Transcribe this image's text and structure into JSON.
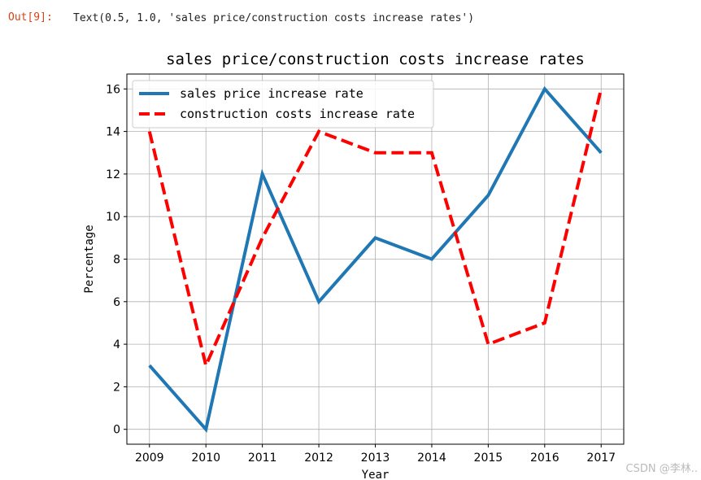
{
  "cell": {
    "prompt": "Out[9]:",
    "output_text": "Text(0.5, 1.0, 'sales price/construction costs increase rates')"
  },
  "watermark": "CSDN @李林..",
  "chart_data": {
    "type": "line",
    "title": "sales price/construction costs increase rates",
    "xlabel": "Year",
    "ylabel": "Percentage",
    "x": [
      2009,
      2010,
      2011,
      2012,
      2013,
      2014,
      2015,
      2016,
      2017
    ],
    "ylim": [
      -0.7,
      16.7
    ],
    "xlim": [
      2008.6,
      2017.4
    ],
    "yticks": [
      0,
      2,
      4,
      6,
      8,
      10,
      12,
      14,
      16
    ],
    "grid": true,
    "legend_position": "upper-left",
    "series": [
      {
        "name": "sales price increase rate",
        "values": [
          3,
          0,
          12,
          6,
          9,
          8,
          11,
          16,
          13
        ],
        "color": "#1f77b4",
        "style": "solid"
      },
      {
        "name": "construction costs increase rate",
        "values": [
          14,
          3,
          9,
          14,
          13,
          13,
          4,
          5,
          16
        ],
        "color": "#ff0000",
        "style": "dashed"
      }
    ]
  }
}
